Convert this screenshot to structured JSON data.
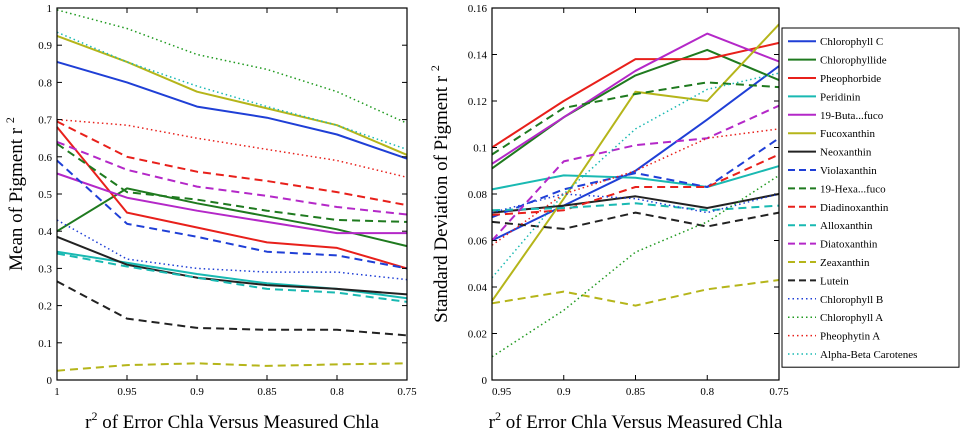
{
  "chart_data": [
    {
      "type": "line",
      "panel": "left",
      "xlabel": "r",
      "xlabel_sup": "2",
      "xlabel_rest": " of Error Chla Versus Measured Chla",
      "ylabel": "Mean of Pigment r",
      "ylabel_sup": "2",
      "x": [
        1,
        0.95,
        0.9,
        0.85,
        0.8,
        0.75
      ],
      "x_tick_labels": [
        "1",
        "0.95",
        "0.9",
        "0.85",
        "0.8",
        "0.75"
      ],
      "xlim": [
        1,
        0.75
      ],
      "ylim": [
        0,
        1
      ],
      "y_ticks": [
        0,
        0.1,
        0.2,
        0.3,
        0.4,
        0.5,
        0.6,
        0.7,
        0.8,
        0.9,
        1
      ],
      "y_tick_labels": [
        "0",
        "0.1",
        "0.2",
        "0.3",
        "0.4",
        "0.5",
        "0.6",
        "0.7",
        "0.8",
        "0.9",
        "1"
      ],
      "series": [
        {
          "name": "Chlorophyll C",
          "values": [
            0.855,
            0.8,
            0.735,
            0.705,
            0.66,
            0.595
          ]
        },
        {
          "name": "Chlorophyllide",
          "values": [
            0.4,
            0.515,
            0.475,
            0.44,
            0.405,
            0.36
          ]
        },
        {
          "name": "Pheophorbide",
          "values": [
            0.68,
            0.45,
            0.41,
            0.37,
            0.355,
            0.3
          ]
        },
        {
          "name": "Peridinin",
          "values": [
            0.345,
            0.315,
            0.285,
            0.26,
            0.245,
            0.22
          ]
        },
        {
          "name": "19-Buta...fuco",
          "values": [
            0.555,
            0.49,
            0.455,
            0.425,
            0.395,
            0.395
          ]
        },
        {
          "name": "Fucoxanthin",
          "values": [
            0.925,
            0.855,
            0.775,
            0.73,
            0.685,
            0.605
          ]
        },
        {
          "name": "Neoxanthin",
          "values": [
            0.385,
            0.31,
            0.275,
            0.255,
            0.245,
            0.23
          ]
        },
        {
          "name": "Violaxanthin",
          "values": [
            0.59,
            0.42,
            0.385,
            0.345,
            0.335,
            0.3
          ]
        },
        {
          "name": "19-Hexa...fuco",
          "values": [
            0.635,
            0.505,
            0.485,
            0.455,
            0.43,
            0.425
          ]
        },
        {
          "name": "Diadinoxanthin",
          "values": [
            0.695,
            0.6,
            0.56,
            0.535,
            0.505,
            0.47
          ]
        },
        {
          "name": "Alloxanthin",
          "values": [
            0.34,
            0.305,
            0.275,
            0.245,
            0.235,
            0.21
          ]
        },
        {
          "name": "Diatoxanthin",
          "values": [
            0.64,
            0.565,
            0.52,
            0.495,
            0.465,
            0.445
          ]
        },
        {
          "name": "Zeaxanthin",
          "values": [
            0.025,
            0.04,
            0.045,
            0.038,
            0.042,
            0.045
          ]
        },
        {
          "name": "Lutein",
          "values": [
            0.265,
            0.165,
            0.14,
            0.135,
            0.135,
            0.12
          ]
        },
        {
          "name": "Chlorophyll B",
          "values": [
            0.43,
            0.325,
            0.3,
            0.29,
            0.29,
            0.27
          ]
        },
        {
          "name": "Chlorophyll A",
          "values": [
            0.995,
            0.945,
            0.875,
            0.835,
            0.775,
            0.69
          ]
        },
        {
          "name": "Pheophytin A",
          "values": [
            0.7,
            0.685,
            0.65,
            0.62,
            0.59,
            0.545
          ]
        },
        {
          "name": "Alpha-Beta Carotenes",
          "values": [
            0.935,
            0.855,
            0.79,
            0.735,
            0.685,
            0.62
          ]
        }
      ]
    },
    {
      "type": "line",
      "panel": "right",
      "xlabel": "r",
      "xlabel_sup": "2",
      "xlabel_rest": " of Error Chla Versus Measured Chla",
      "ylabel": "Standard Deviation of Pigment r",
      "ylabel_sup": "2",
      "x": [
        0.95,
        0.9,
        0.85,
        0.8,
        0.75
      ],
      "x_tick_labels": [
        "0.95",
        "0.9",
        "0.85",
        "0.8",
        "0.75"
      ],
      "xlim": [
        0.95,
        0.75
      ],
      "ylim": [
        0,
        0.16
      ],
      "y_ticks": [
        0,
        0.02,
        0.04,
        0.06,
        0.08,
        0.1,
        0.12,
        0.14,
        0.16
      ],
      "y_tick_labels": [
        "0",
        "0.02",
        "0.04",
        "0.06",
        "0.08",
        "0.1",
        "0.12",
        "0.14",
        "0.16"
      ],
      "series": [
        {
          "name": "Chlorophyll C",
          "values": [
            0.06,
            0.075,
            0.09,
            0.112,
            0.135
          ]
        },
        {
          "name": "Chlorophyllide",
          "values": [
            0.091,
            0.113,
            0.131,
            0.142,
            0.129
          ]
        },
        {
          "name": "Pheophorbide",
          "values": [
            0.1,
            0.12,
            0.138,
            0.138,
            0.145
          ]
        },
        {
          "name": "Peridinin",
          "values": [
            0.082,
            0.088,
            0.087,
            0.083,
            0.092
          ]
        },
        {
          "name": "19-Buta...fuco",
          "values": [
            0.093,
            0.113,
            0.133,
            0.149,
            0.137
          ]
        },
        {
          "name": "Fucoxanthin",
          "values": [
            0.034,
            0.078,
            0.124,
            0.12,
            0.153
          ]
        },
        {
          "name": "Neoxanthin",
          "values": [
            0.072,
            0.075,
            0.079,
            0.074,
            0.08
          ]
        },
        {
          "name": "Violaxanthin",
          "values": [
            0.07,
            0.082,
            0.089,
            0.083,
            0.104
          ]
        },
        {
          "name": "19-Hexa...fuco",
          "values": [
            0.097,
            0.117,
            0.123,
            0.128,
            0.126
          ]
        },
        {
          "name": "Diadinoxanthin",
          "values": [
            0.071,
            0.073,
            0.083,
            0.083,
            0.097
          ]
        },
        {
          "name": "Alloxanthin",
          "values": [
            0.073,
            0.074,
            0.076,
            0.073,
            0.075
          ]
        },
        {
          "name": "Diatoxanthin",
          "values": [
            0.06,
            0.094,
            0.101,
            0.104,
            0.118
          ]
        },
        {
          "name": "Zeaxanthin",
          "values": [
            0.033,
            0.038,
            0.032,
            0.039,
            0.043
          ]
        },
        {
          "name": "Lutein",
          "values": [
            0.068,
            0.065,
            0.072,
            0.066,
            0.072
          ]
        },
        {
          "name": "Chlorophyll B",
          "values": [
            0.072,
            0.08,
            0.078,
            0.072,
            0.08
          ]
        },
        {
          "name": "Chlorophyll A",
          "values": [
            0.01,
            0.03,
            0.055,
            0.068,
            0.088
          ]
        },
        {
          "name": "Pheophytin A",
          "values": [
            0.058,
            0.08,
            0.09,
            0.104,
            0.108
          ]
        },
        {
          "name": "Alpha-Beta Carotenes",
          "values": [
            0.044,
            0.08,
            0.108,
            0.125,
            0.132
          ]
        }
      ]
    }
  ],
  "legend": {
    "placement": "right",
    "entries": [
      {
        "name": "Chlorophyll C",
        "color": "#1f3fd6",
        "dash": "solid"
      },
      {
        "name": "Chlorophyllide",
        "color": "#1f7a1f",
        "dash": "solid"
      },
      {
        "name": "Pheophorbide",
        "color": "#e8201b",
        "dash": "solid"
      },
      {
        "name": "Peridinin",
        "color": "#19b9b2",
        "dash": "solid"
      },
      {
        "name": "19-Buta...fuco",
        "color": "#b428c8",
        "dash": "solid"
      },
      {
        "name": "Fucoxanthin",
        "color": "#b5b51a",
        "dash": "solid"
      },
      {
        "name": "Neoxanthin",
        "color": "#222222",
        "dash": "solid"
      },
      {
        "name": "Violaxanthin",
        "color": "#1f3fd6",
        "dash": "dashed"
      },
      {
        "name": "19-Hexa...fuco",
        "color": "#1f7a1f",
        "dash": "dashed"
      },
      {
        "name": "Diadinoxanthin",
        "color": "#e8201b",
        "dash": "dashed"
      },
      {
        "name": "Alloxanthin",
        "color": "#19b9b2",
        "dash": "dashed"
      },
      {
        "name": "Diatoxanthin",
        "color": "#b428c8",
        "dash": "dashed"
      },
      {
        "name": "Zeaxanthin",
        "color": "#b5b51a",
        "dash": "dashed"
      },
      {
        "name": "Lutein",
        "color": "#222222",
        "dash": "dashed"
      },
      {
        "name": "Chlorophyll B",
        "color": "#1f3fd6",
        "dash": "dotted"
      },
      {
        "name": "Chlorophyll A",
        "color": "#1f9a1f",
        "dash": "dotted"
      },
      {
        "name": "Pheophytin A",
        "color": "#e8201b",
        "dash": "dotted"
      },
      {
        "name": "Alpha-Beta Carotenes",
        "color": "#19b9b2",
        "dash": "dotted"
      }
    ]
  }
}
